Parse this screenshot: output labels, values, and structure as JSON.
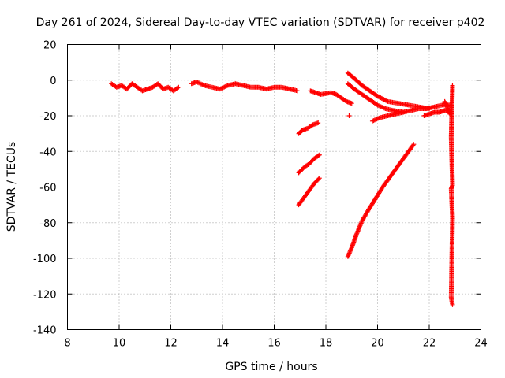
{
  "chart_data": {
    "type": "scatter",
    "title": "Day 261 of 2024, Sidereal Day-to-day VTEC variation (SDTVAR) for receiver p402",
    "xlabel": "GPS time / hours",
    "ylabel": "SDTVAR / TECUs",
    "xlim": [
      8,
      24
    ],
    "ylim": [
      -140,
      20
    ],
    "xticks": [
      "8",
      "10",
      "12",
      "14",
      "16",
      "18",
      "20",
      "22",
      "24"
    ],
    "yticks": [
      "20",
      "0",
      "-20",
      "-40",
      "-60",
      "-80",
      "-100",
      "-120",
      "-140"
    ],
    "grid": true,
    "marker": "+",
    "color": "#ff0000",
    "series": [
      {
        "name": "arc-main-band",
        "x": [
          9.7,
          9.9,
          10.1,
          10.3,
          10.5,
          10.7,
          10.9,
          11.1,
          11.3,
          11.5,
          11.7,
          11.9,
          12.1,
          12.3
        ],
        "y": [
          -2,
          -4,
          -3,
          -5,
          -2,
          -4,
          -6,
          -5,
          -4,
          -2,
          -5,
          -4,
          -6,
          -4
        ]
      },
      {
        "name": "arc-band-2",
        "x": [
          12.8,
          13.0,
          13.3,
          13.6,
          13.9,
          14.2,
          14.5,
          14.8,
          15.1,
          15.4,
          15.7,
          16.0,
          16.3,
          16.6,
          16.9
        ],
        "y": [
          -2,
          -1,
          -3,
          -4,
          -5,
          -3,
          -2,
          -3,
          -4,
          -4,
          -5,
          -4,
          -4,
          -5,
          -6
        ]
      },
      {
        "name": "arc-band-3",
        "x": [
          17.4,
          17.6,
          17.8,
          18.2,
          18.4,
          18.6,
          18.8,
          19.0
        ],
        "y": [
          -6,
          -7,
          -8,
          -7,
          -8,
          -10,
          -12,
          -13
        ]
      },
      {
        "name": "arc-rise-1",
        "x": [
          16.95,
          17.1,
          17.3,
          17.5,
          17.7
        ],
        "y": [
          -30,
          -28,
          -27,
          -25,
          -24
        ]
      },
      {
        "name": "arc-rise-2",
        "x": [
          16.95,
          17.15,
          17.35,
          17.55,
          17.75
        ],
        "y": [
          -52,
          -49,
          -47,
          -44,
          -42
        ]
      },
      {
        "name": "arc-rise-3",
        "x": [
          16.95,
          17.15,
          17.35,
          17.55,
          17.75
        ],
        "y": [
          -70,
          -66,
          -62,
          -58,
          -55
        ]
      },
      {
        "name": "arc-long-rise",
        "x": [
          18.85,
          19.0,
          19.2,
          19.4,
          19.6,
          19.9,
          20.2,
          20.5,
          20.8,
          21.1,
          21.4
        ],
        "y": [
          -99,
          -94,
          -86,
          -79,
          -74,
          -67,
          -60,
          -54,
          -48,
          -42,
          -36
        ]
      },
      {
        "name": "arc-descend-1",
        "x": [
          18.85,
          19.1,
          19.4,
          19.7,
          20.0,
          20.4,
          20.8,
          21.2,
          21.6,
          22.0
        ],
        "y": [
          4,
          1,
          -3,
          -6,
          -9,
          -12,
          -13,
          -14,
          -15,
          -16
        ]
      },
      {
        "name": "arc-descend-2",
        "x": [
          18.85,
          19.1,
          19.4,
          19.7,
          20.0,
          20.3,
          20.6,
          21.0
        ],
        "y": [
          -2,
          -5,
          -8,
          -11,
          -14,
          -16,
          -17,
          -18
        ]
      },
      {
        "name": "arc-return",
        "x": [
          19.8,
          20.1,
          20.4,
          20.7,
          21.0,
          21.3,
          21.6,
          21.9,
          22.2,
          22.5,
          22.8
        ],
        "y": [
          -23,
          -21,
          -20,
          -19,
          -18,
          -17,
          -16,
          -16,
          -15,
          -14,
          -14
        ]
      },
      {
        "name": "arc-tail",
        "x": [
          21.8,
          22.0,
          22.2,
          22.4,
          22.6,
          22.8
        ],
        "y": [
          -20,
          -19,
          -18,
          -18,
          -17,
          -17
        ]
      },
      {
        "name": "arc-late-vertical",
        "x": [
          22.6,
          22.7,
          22.75,
          22.8
        ],
        "y": [
          -12,
          -15,
          -18,
          -19
        ]
      },
      {
        "name": "arc-late-points",
        "x": [
          22.9,
          22.85,
          22.9,
          22.85,
          22.9,
          22.85,
          22.9
        ],
        "y": [
          -3,
          -32,
          -59,
          -61,
          -77,
          -122,
          -126
        ]
      },
      {
        "name": "arc-isolated",
        "x": [
          18.9
        ],
        "y": [
          -20
        ]
      }
    ]
  }
}
